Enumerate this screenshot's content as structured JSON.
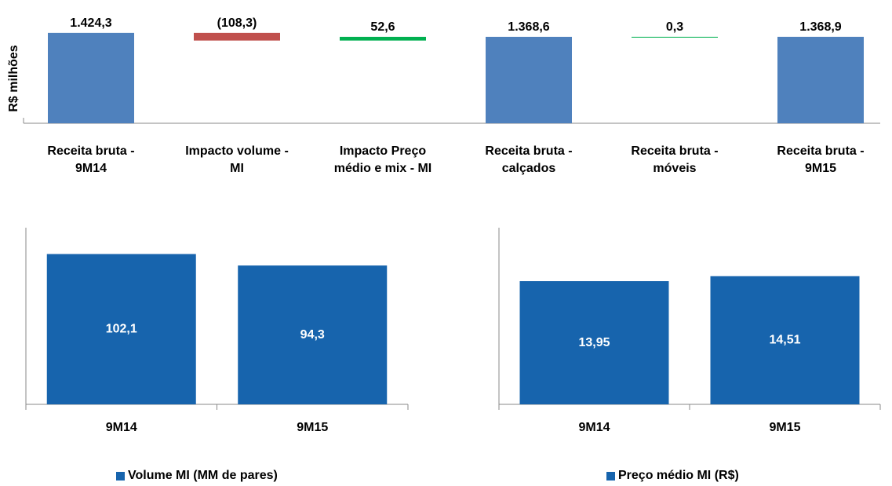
{
  "chart_data": [
    {
      "type": "waterfall",
      "ylabel": "R$ milhões",
      "categories": [
        "Receita bruta -\n9M14",
        "Impacto volume -\nMI",
        "Impacto Preço\nmédio e mix - MI",
        "Receita bruta -\ncalçados",
        "Receita bruta -\nmóveis",
        "Receita bruta -\n9M15"
      ],
      "values": [
        1424.3,
        -108.3,
        52.6,
        1368.6,
        0.3,
        1368.9
      ],
      "value_labels": [
        "1.424,3",
        "(108,3)",
        "52,6",
        "1.368,6",
        "0,3",
        "1.368,9"
      ],
      "is_total": [
        true,
        false,
        false,
        true,
        false,
        true
      ],
      "colors": [
        "#4f81bd",
        "#c0504d",
        "#00b050",
        "#4f81bd",
        "#00b050",
        "#4f81bd"
      ],
      "ylim": [
        150,
        1600
      ]
    },
    {
      "type": "bar",
      "categories": [
        "9M14",
        "9M15"
      ],
      "series": [
        {
          "name": "Volume MI (MM de pares)",
          "color": "#1764ad",
          "values": [
            102.1,
            94.3
          ],
          "value_labels": [
            "102,1",
            "94,3"
          ]
        }
      ],
      "ylim": [
        0,
        120
      ]
    },
    {
      "type": "bar",
      "categories": [
        "9M14",
        "9M15"
      ],
      "series": [
        {
          "name": "Preço médio MI (R$)",
          "color": "#1764ad",
          "values": [
            13.95,
            14.51
          ],
          "value_labels": [
            "13,95",
            "14,51"
          ]
        }
      ],
      "ylim": [
        0,
        20
      ]
    }
  ]
}
